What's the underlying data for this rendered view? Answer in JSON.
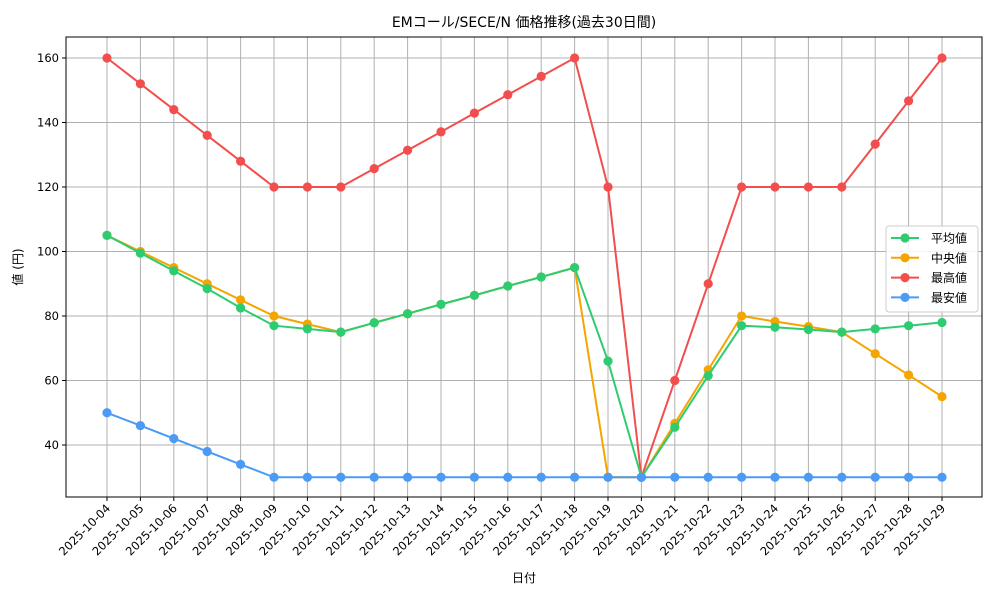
{
  "chart_data": {
    "type": "line",
    "title": "EMコール/SECE/N 価格推移(過去30日間)",
    "xlabel": "日付",
    "ylabel": "値 (円)",
    "ylim": [
      23,
      166.5
    ],
    "yticks": [
      40,
      60,
      80,
      100,
      120,
      140,
      160
    ],
    "grid": true,
    "legend_position": "center right",
    "categories": [
      "2025-10-04",
      "2025-10-05",
      "2025-10-06",
      "2025-10-07",
      "2025-10-08",
      "2025-10-09",
      "2025-10-10",
      "2025-10-11",
      "2025-10-12",
      "2025-10-13",
      "2025-10-14",
      "2025-10-15",
      "2025-10-16",
      "2025-10-17",
      "2025-10-18",
      "2025-10-19",
      "2025-10-20",
      "2025-10-21",
      "2025-10-22",
      "2025-10-23",
      "2025-10-24",
      "2025-10-25",
      "2025-10-26",
      "2025-10-27",
      "2025-10-28",
      "2025-10-29"
    ],
    "series": [
      {
        "name": "平均値",
        "color": "#2ecc71",
        "values": [
          105,
          99.5,
          94,
          88.5,
          82.5,
          77,
          76,
          75,
          77.9,
          80.7,
          83.6,
          86.4,
          89.3,
          92.1,
          95,
          66,
          30,
          45.5,
          61.5,
          77,
          76.5,
          75.8,
          75,
          76,
          77,
          78
        ]
      },
      {
        "name": "中央値",
        "color": "#f5a500",
        "values": [
          105,
          100,
          95,
          90,
          85,
          80,
          77.5,
          75,
          77.9,
          80.7,
          83.6,
          86.4,
          89.3,
          92.1,
          95,
          30,
          30,
          46.7,
          63.3,
          80,
          78.3,
          76.7,
          75,
          68.3,
          61.7,
          55
        ]
      },
      {
        "name": "最高値",
        "color": "#f24e4e",
        "values": [
          160,
          152,
          144,
          136,
          128,
          120,
          120,
          120,
          125.7,
          131.4,
          137.1,
          142.9,
          148.6,
          154.3,
          160,
          120,
          30,
          60,
          90,
          120,
          120,
          120,
          120,
          133.3,
          146.7,
          160
        ]
      },
      {
        "name": "最安値",
        "color": "#4b9af5",
        "values": [
          50,
          46,
          42,
          38,
          34,
          30,
          30,
          30,
          30,
          30,
          30,
          30,
          30,
          30,
          30,
          30,
          30,
          30,
          30,
          30,
          30,
          30,
          30,
          30,
          30,
          30
        ]
      }
    ]
  }
}
